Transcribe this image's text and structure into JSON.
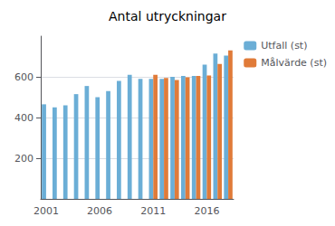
{
  "chart_data": {
    "type": "bar",
    "title": "Antal utryckningar",
    "categories": [
      "2001",
      null,
      null,
      null,
      null,
      "2006",
      null,
      null,
      null,
      null,
      "2011",
      null,
      null,
      null,
      null,
      "2016",
      null,
      null
    ],
    "series": [
      {
        "name": "Utfall (st)",
        "color": "#6BAED6",
        "values": [
          465,
          450,
          460,
          515,
          555,
          500,
          530,
          580,
          610,
          590,
          590,
          590,
          600,
          605,
          605,
          660,
          715,
          705
        ]
      },
      {
        "name": "Målvärde (st)",
        "color": "#E07B39",
        "values": [
          null,
          null,
          null,
          null,
          null,
          null,
          null,
          null,
          null,
          null,
          610,
          595,
          585,
          598,
          605,
          607,
          663,
          730
        ]
      }
    ],
    "ylim": [
      0,
      800
    ],
    "yticks": [
      200,
      400,
      600
    ],
    "grid": true,
    "legend": "upper right"
  }
}
